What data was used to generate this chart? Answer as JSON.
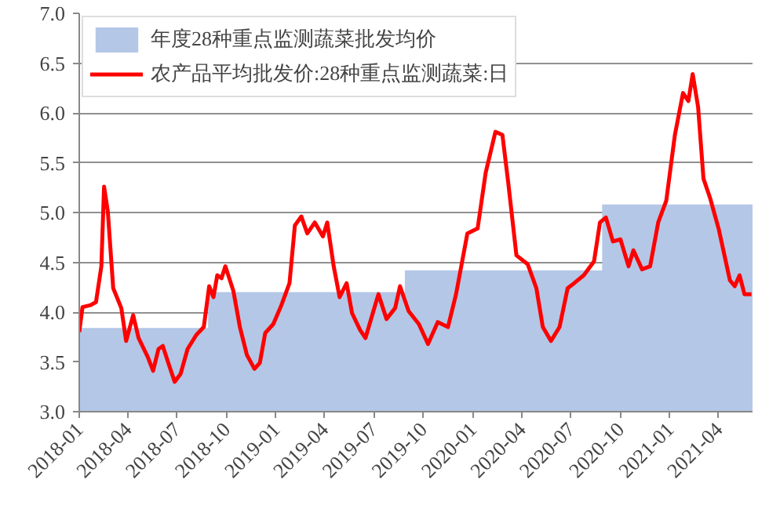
{
  "chart_data": {
    "type": "line",
    "xlim": [
      "2018-01-01",
      "2021-06-03"
    ],
    "xticks": [
      "2018-01",
      "2018-04",
      "2018-07",
      "2018-10",
      "2019-01",
      "2019-04",
      "2019-07",
      "2019-10",
      "2020-01",
      "2020-04",
      "2020-07",
      "2020-10",
      "2021-01",
      "2021-04"
    ],
    "ylim": [
      3,
      7
    ],
    "yticks": [
      {
        "value": 3,
        "label": "3.0"
      },
      {
        "value": 3.5,
        "label": "3.5"
      },
      {
        "value": 4,
        "label": "4.0"
      },
      {
        "value": 4.5,
        "label": "4.5"
      },
      {
        "value": 5,
        "label": "5.0"
      },
      {
        "value": 5.5,
        "label": "5.5"
      },
      {
        "value": 6,
        "label": "6.0"
      },
      {
        "value": 6.5,
        "label": "6.5"
      },
      {
        "value": 7,
        "label": "7.0"
      }
    ],
    "grid": "y",
    "legend": "top left",
    "series": [
      {
        "name": "年度28种重点监测蔬菜批发均价",
        "type": "area",
        "color": "#b4c7e7",
        "x": [
          "2018-01-01",
          "2018-08-28",
          "2018-08-28",
          "2019-08-28",
          "2019-08-28",
          "2020-08-28",
          "2020-08-28",
          "2021-06-03"
        ],
        "values": [
          3.84,
          3.84,
          4.2,
          4.2,
          4.42,
          4.42,
          5.08,
          5.08
        ]
      },
      {
        "name": "农产品平均批发价:28种重点监测蔬菜:日",
        "color": "#ff0000",
        "x": [
          "2018-01-01",
          "2018-01-07",
          "2018-01-22",
          "2018-02-01",
          "2018-02-11",
          "2018-02-16",
          "2018-02-23",
          "2018-03-05",
          "2018-03-20",
          "2018-03-29",
          "2018-04-11",
          "2018-04-21",
          "2018-05-08",
          "2018-05-18",
          "2018-05-28",
          "2018-06-05",
          "2018-06-17",
          "2018-06-27",
          "2018-07-08",
          "2018-07-21",
          "2018-08-06",
          "2018-08-20",
          "2018-08-30",
          "2018-09-07",
          "2018-09-14",
          "2018-09-22",
          "2018-09-29",
          "2018-10-14",
          "2018-10-26",
          "2018-11-08",
          "2018-11-22",
          "2018-12-02",
          "2018-12-12",
          "2018-12-27",
          "2019-01-11",
          "2019-01-26",
          "2019-02-05",
          "2019-02-17",
          "2019-02-28",
          "2019-03-14",
          "2019-03-29",
          "2019-04-06",
          "2019-04-18",
          "2019-04-29",
          "2019-05-12",
          "2019-05-22",
          "2019-06-06",
          "2019-06-16",
          "2019-06-28",
          "2019-07-10",
          "2019-07-25",
          "2019-08-10",
          "2019-08-19",
          "2019-09-04",
          "2019-09-23",
          "2019-10-10",
          "2019-10-28",
          "2019-11-16",
          "2019-12-01",
          "2019-12-22",
          "2020-01-10",
          "2020-01-25",
          "2020-02-12",
          "2020-02-25",
          "2020-03-07",
          "2020-03-22",
          "2020-04-12",
          "2020-04-28",
          "2020-05-10",
          "2020-05-25",
          "2020-06-10",
          "2020-06-25",
          "2020-07-07",
          "2020-07-25",
          "2020-08-13",
          "2020-08-24",
          "2020-09-04",
          "2020-09-17",
          "2020-10-01",
          "2020-10-16",
          "2020-10-25",
          "2020-11-10",
          "2020-11-25",
          "2020-12-10",
          "2020-12-25",
          "2021-01-10",
          "2021-01-25",
          "2021-02-04",
          "2021-02-12",
          "2021-02-22",
          "2021-03-04",
          "2021-03-16",
          "2021-04-01",
          "2021-04-22",
          "2021-05-01",
          "2021-05-10",
          "2021-05-19",
          "2021-06-01"
        ],
        "values": [
          3.8,
          4.05,
          4.07,
          4.1,
          4.46,
          5.26,
          5.01,
          4.24,
          4.04,
          3.71,
          3.97,
          3.74,
          3.55,
          3.41,
          3.63,
          3.66,
          3.46,
          3.3,
          3.38,
          3.63,
          3.77,
          3.85,
          4.26,
          4.15,
          4.37,
          4.34,
          4.46,
          4.21,
          3.85,
          3.57,
          3.43,
          3.49,
          3.79,
          3.88,
          4.07,
          4.29,
          4.87,
          4.96,
          4.79,
          4.9,
          4.76,
          4.9,
          4.46,
          4.15,
          4.29,
          3.99,
          3.82,
          3.74,
          3.96,
          4.18,
          3.93,
          4.04,
          4.26,
          4.01,
          3.88,
          3.68,
          3.9,
          3.85,
          4.18,
          4.79,
          4.84,
          5.4,
          5.81,
          5.78,
          5.29,
          4.57,
          4.48,
          4.24,
          3.85,
          3.71,
          3.85,
          4.24,
          4.29,
          4.37,
          4.51,
          4.9,
          4.95,
          4.71,
          4.73,
          4.46,
          4.62,
          4.43,
          4.46,
          4.9,
          5.12,
          5.78,
          6.2,
          6.12,
          6.39,
          6.06,
          5.34,
          5.15,
          4.84,
          4.32,
          4.26,
          4.37,
          4.18,
          4.18
        ]
      }
    ]
  }
}
